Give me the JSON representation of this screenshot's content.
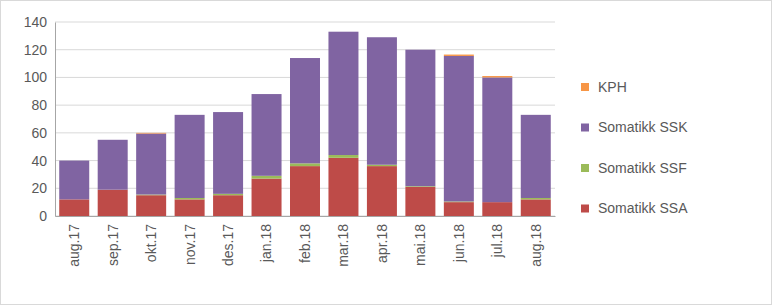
{
  "chart_data": {
    "type": "bar",
    "stacked": true,
    "grid": true,
    "legend": "right",
    "categories": [
      "aug.17",
      "sep.17",
      "okt.17",
      "nov.17",
      "des.17",
      "jan.18",
      "feb.18",
      "mar.18",
      "apr.18",
      "mai.18",
      "jun.18",
      "jul.18",
      "aug.18"
    ],
    "ylim": [
      0,
      140
    ],
    "yticks": [
      0,
      20,
      40,
      60,
      80,
      100,
      120,
      140
    ],
    "series": [
      {
        "name": "Somatikk SSA",
        "color": "#be4b48",
        "values": [
          12,
          19,
          15,
          12,
          15,
          27,
          36,
          42,
          36,
          21,
          10,
          10,
          12
        ]
      },
      {
        "name": "Somatikk SSF",
        "color": "#9bbb59",
        "values": [
          0,
          0,
          0.5,
          1,
          1,
          2,
          2,
          2,
          1,
          0.5,
          0.5,
          0,
          1
        ]
      },
      {
        "name": "Somatikk SSK",
        "color": "#8064a2",
        "values": [
          28,
          36,
          44,
          60,
          59,
          59,
          76,
          89,
          92,
          98.5,
          105,
          90,
          60
        ]
      },
      {
        "name": "KPH",
        "color": "#f79646",
        "values": [
          0,
          0,
          0.5,
          0,
          0,
          0,
          0,
          0,
          0,
          0,
          1,
          1,
          0
        ]
      }
    ]
  }
}
